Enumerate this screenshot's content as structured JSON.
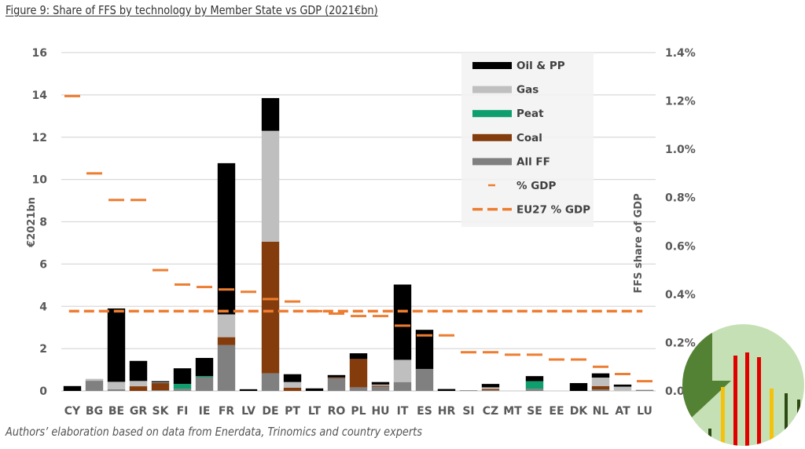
{
  "figure": {
    "title": "Figure 9:  Share of FFS by technology by Member State vs GDP (2021€bn)",
    "footnote": "Authors’ elaboration based on data from Enerdata, Trinomics and country experts"
  },
  "colors": {
    "oil": "#000000",
    "gas": "#bfbfbf",
    "peat": "#0f9e6e",
    "coal": "#843c0c",
    "allff": "#808080",
    "gdp": "#ed7d31",
    "grid": "#d9d9d9",
    "badge_bg": "#c5e0b4",
    "badge_dark": "#548235",
    "badge_red": "#e00000",
    "badge_yellow": "#f4c20d",
    "badge_darkgreen": "#2d4a14"
  },
  "chart_data": {
    "type": "bar",
    "stacked": true,
    "title": "Share of FFS by technology by Member State vs GDP (2021€bn)",
    "xlabel": "",
    "ylabel": "€2021bn",
    "y2label": "FFS share of GDP",
    "ylim": [
      0,
      16
    ],
    "yticks": [
      0,
      2,
      4,
      6,
      8,
      10,
      12,
      14,
      16
    ],
    "y2lim": [
      0,
      1.4
    ],
    "y2ticks": [
      "0.0%",
      "0.2%",
      "0.4%",
      "0.6%",
      "0.8%",
      "1.0%",
      "1.2%",
      "1.4%"
    ],
    "grid": true,
    "legend_position": "top-right",
    "categories": [
      "CY",
      "BG",
      "BE",
      "GR",
      "SK",
      "FI",
      "IE",
      "FR",
      "LV",
      "DE",
      "PT",
      "LT",
      "RO",
      "PL",
      "HU",
      "IT",
      "ES",
      "HR",
      "SI",
      "CZ",
      "MT",
      "SE",
      "EE",
      "DK",
      "NL",
      "AT",
      "LU"
    ],
    "series": [
      {
        "name": "All FF",
        "key": "allff",
        "values": [
          0,
          0.48,
          0.08,
          0,
          0.03,
          0.1,
          0.65,
          2.17,
          0,
          0.83,
          0,
          0,
          0.6,
          0.17,
          0.2,
          0.42,
          1.04,
          0,
          0.03,
          0.03,
          0,
          0.1,
          0,
          0,
          0.07,
          0,
          0.05
        ]
      },
      {
        "name": "Coal",
        "key": "coal",
        "values": [
          0,
          0,
          0,
          0.22,
          0.35,
          0,
          0,
          0.37,
          0,
          6.23,
          0.15,
          0,
          0.04,
          1.34,
          0.05,
          0,
          0,
          0,
          0,
          0.06,
          0,
          0,
          0,
          0,
          0.16,
          0,
          0
        ]
      },
      {
        "name": "Peat",
        "key": "peat",
        "values": [
          0,
          0,
          0,
          0,
          0,
          0.23,
          0.05,
          0,
          0,
          0,
          0,
          0,
          0,
          0,
          0,
          0,
          0,
          0,
          0,
          0,
          0,
          0.36,
          0,
          0,
          0,
          0,
          0
        ]
      },
      {
        "name": "Gas",
        "key": "gas",
        "values": [
          0,
          0.09,
          0.35,
          0.25,
          0.02,
          0,
          0,
          1.08,
          0,
          5.24,
          0.27,
          0,
          0,
          0,
          0.05,
          1.05,
          0,
          0,
          0,
          0.08,
          0,
          0,
          0,
          0,
          0.4,
          0.2,
          0
        ]
      },
      {
        "name": "Oil & PP",
        "key": "oil",
        "values": [
          0.23,
          0,
          3.47,
          0.95,
          0.06,
          0.74,
          0.86,
          7.15,
          0.08,
          1.55,
          0.37,
          0.12,
          0.11,
          0.27,
          0.12,
          3.56,
          1.85,
          0.09,
          0,
          0.16,
          0,
          0.24,
          0,
          0.37,
          0.2,
          0.1,
          0
        ]
      }
    ],
    "gdp_share_pct": {
      "name": "% GDP",
      "values": [
        1.22,
        0.9,
        0.79,
        0.79,
        0.5,
        0.44,
        0.43,
        0.42,
        0.41,
        0.38,
        0.37,
        0.33,
        0.32,
        0.31,
        0.31,
        0.27,
        0.23,
        0.23,
        0.16,
        0.16,
        0.15,
        0.15,
        0.13,
        0.13,
        0.1,
        0.07,
        0.04
      ]
    },
    "eu27_gdp_share_pct": {
      "name": "EU27 % GDP",
      "value": 0.33
    },
    "legend": [
      {
        "label": "Oil & PP",
        "key": "oil",
        "kind": "box"
      },
      {
        "label": "Gas",
        "key": "gas",
        "kind": "box"
      },
      {
        "label": "Peat",
        "key": "peat",
        "kind": "box"
      },
      {
        "label": "Coal",
        "key": "coal",
        "kind": "box"
      },
      {
        "label": "All FF",
        "key": "allff",
        "kind": "box"
      },
      {
        "label": "% GDP",
        "key": "gdp",
        "kind": "dash"
      },
      {
        "label": "EU27 % GDP",
        "key": "gdp",
        "kind": "dashed-line"
      }
    ]
  }
}
